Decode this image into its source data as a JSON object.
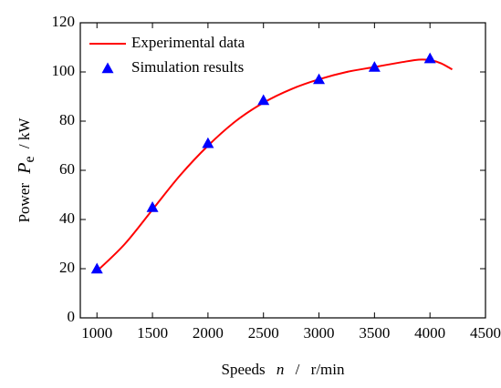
{
  "chart_data": {
    "type": "line",
    "xlabel_parts": [
      "Speeds",
      "n",
      "/",
      "r/min"
    ],
    "ylabel_parts": [
      "Power",
      "P",
      "e",
      "/ kW"
    ],
    "xlim": [
      850,
      4500
    ],
    "xticks": [
      1000,
      1500,
      2000,
      2500,
      3000,
      3500,
      4000,
      4500
    ],
    "ylim": [
      0,
      120
    ],
    "yticks": [
      0,
      20,
      40,
      60,
      80,
      100,
      120
    ],
    "legend": "upper left",
    "series": [
      {
        "name": "Experimental data",
        "color": "#ff0000",
        "style": "line",
        "x": [
          1000,
          1250,
          1500,
          1750,
          2000,
          2250,
          2500,
          2750,
          3000,
          3250,
          3500,
          3750,
          3900,
          4000,
          4100,
          4200
        ],
        "values": [
          19,
          30,
          44,
          58,
          70,
          80,
          87.5,
          93,
          97,
          100,
          102,
          104,
          105,
          104.8,
          103.5,
          101
        ]
      },
      {
        "name": "Simulation results",
        "color": "#0000ff",
        "style": "triangle",
        "x": [
          1000,
          1500,
          2000,
          2500,
          3000,
          3500,
          4000
        ],
        "values": [
          20,
          45,
          71,
          88.5,
          97,
          102,
          105.5
        ]
      }
    ]
  }
}
